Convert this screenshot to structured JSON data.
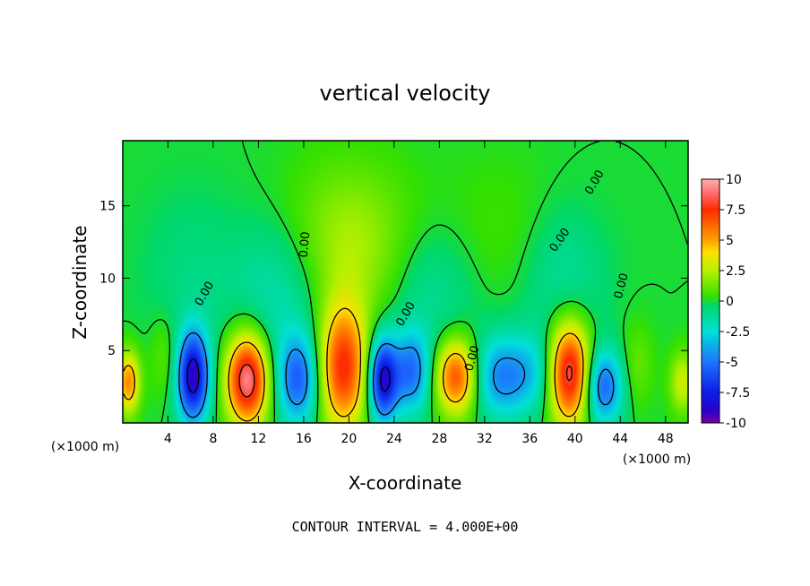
{
  "chart_data": {
    "type": "heatmap",
    "title": "vertical velocity",
    "xlabel": "X-coordinate",
    "ylabel": "Z-coordinate",
    "x_unit_left": "(×1000 m)",
    "x_unit_right": "(×1000 m)",
    "footer": "CONTOUR INTERVAL = 4.000E+00",
    "xlim": [
      0,
      50
    ],
    "ylim": [
      0,
      19.5
    ],
    "x_ticks": [
      4,
      8,
      12,
      16,
      20,
      24,
      28,
      32,
      36,
      40,
      44,
      48
    ],
    "y_ticks": [
      5,
      10,
      15
    ],
    "colorbar": {
      "range": [
        -10,
        10
      ],
      "ticks": [
        "10",
        "7.5",
        "5",
        "2.5",
        "0",
        "-2.5",
        "-5",
        "-7.5",
        "-10"
      ]
    },
    "contour_labels": [
      "0.00",
      "0.00",
      "0.00",
      "0.00",
      "0.00",
      "0.00",
      "0.00"
    ],
    "cells": [
      {
        "x": 0.5,
        "z": 2.8,
        "w": 5.5,
        "sx": 0.7,
        "sz": 1.5
      },
      {
        "x": 3.8,
        "z": 4.5,
        "w": 1.2,
        "sx": 1.0,
        "sz": 2.0
      },
      {
        "x": 6.2,
        "z": 3.2,
        "w": -9.0,
        "sx": 1.0,
        "sz": 2.2
      },
      {
        "x": 11.0,
        "z": 3.0,
        "w": 9.5,
        "sx": 1.3,
        "sz": 2.2
      },
      {
        "x": 15.5,
        "z": 3.0,
        "w": -5.5,
        "sx": 1.3,
        "sz": 2.2
      },
      {
        "x": 19.5,
        "z": 3.8,
        "w": 7.5,
        "sx": 1.5,
        "sz": 3.0
      },
      {
        "x": 23.0,
        "z": 3.0,
        "w": -8.5,
        "sx": 0.9,
        "sz": 2.0
      },
      {
        "x": 25.5,
        "z": 3.5,
        "w": -5.0,
        "sx": 1.2,
        "sz": 2.0
      },
      {
        "x": 29.5,
        "z": 3.2,
        "w": 7.0,
        "sx": 1.3,
        "sz": 1.8
      },
      {
        "x": 33.5,
        "z": 3.2,
        "w": -4.5,
        "sx": 1.8,
        "sz": 2.0
      },
      {
        "x": 36.5,
        "z": 3.5,
        "w": -2.0,
        "sx": 1.5,
        "sz": 2.0
      },
      {
        "x": 39.5,
        "z": 3.5,
        "w": 9.0,
        "sx": 1.3,
        "sz": 2.5
      },
      {
        "x": 42.5,
        "z": 2.5,
        "w": -5.5,
        "sx": 1.2,
        "sz": 1.8
      },
      {
        "x": 45.5,
        "z": 4.0,
        "w": 1.2,
        "sx": 1.0,
        "sz": 2.0
      },
      {
        "x": 49.5,
        "z": 2.8,
        "w": 3.0,
        "sx": 0.8,
        "sz": 1.5
      },
      {
        "x": 20.0,
        "z": 12.0,
        "w": 2.5,
        "sx": 4.0,
        "sz": 4.0
      },
      {
        "x": 14.0,
        "z": 9.0,
        "w": -2.0,
        "sx": 3.0,
        "sz": 3.5
      },
      {
        "x": 27.0,
        "z": 9.0,
        "w": -1.5,
        "sx": 3.0,
        "sz": 3.5
      },
      {
        "x": 39.0,
        "z": 9.5,
        "w": -1.5,
        "sx": 2.5,
        "sz": 3.5
      },
      {
        "x": 6.0,
        "z": 10.0,
        "w": -0.8,
        "sx": 3.0,
        "sz": 4.0
      },
      {
        "x": 33.0,
        "z": 13.0,
        "w": 0.6,
        "sx": 4.0,
        "sz": 4.0
      }
    ]
  }
}
